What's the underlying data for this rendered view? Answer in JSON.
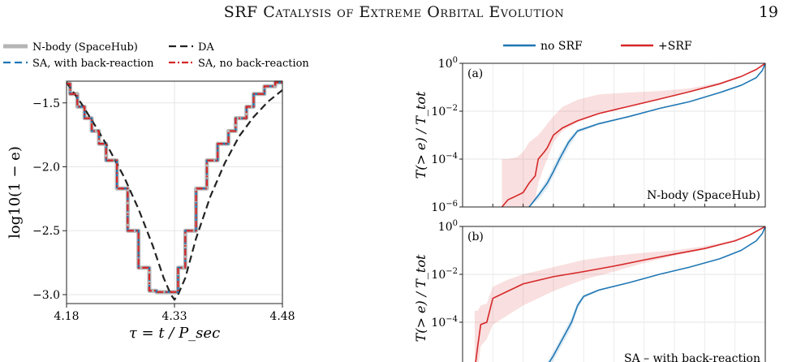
{
  "header": {
    "running_title": "SRF Catalysis of Extreme Orbital Evolution",
    "page_number": "19"
  },
  "chart_data": [
    {
      "type": "line",
      "title": "",
      "xlabel": "τ = t / P_sec",
      "ylabel": "log10(1 − e)",
      "xlim": [
        4.18,
        4.48
      ],
      "ylim": [
        -3.07,
        -1.33
      ],
      "x_ticks": [
        "4.18",
        "4.33",
        "4.48"
      ],
      "y_ticks": [
        "−1.5",
        "−2.0",
        "−2.5",
        "−3.0"
      ],
      "grid": true,
      "legend": {
        "placement": "top",
        "entries": [
          "N-body (SpaceHub)",
          "DA",
          "SA, with back-reaction",
          "SA, no back-reaction"
        ]
      },
      "series": [
        {
          "name": "N-body (SpaceHub)",
          "color": "#b5b5b5",
          "style": "thick-solid",
          "x": [
            4.18,
            4.185,
            4.185,
            4.195,
            4.195,
            4.205,
            4.205,
            4.215,
            4.215,
            4.225,
            4.225,
            4.235,
            4.235,
            4.25,
            4.25,
            4.265,
            4.265,
            4.28,
            4.28,
            4.295,
            4.295,
            4.305,
            4.305,
            4.325,
            4.325,
            4.335,
            4.335,
            4.345,
            4.345,
            4.36,
            4.36,
            4.375,
            4.375,
            4.39,
            4.39,
            4.405,
            4.405,
            4.415,
            4.415,
            4.43,
            4.43,
            4.44,
            4.44,
            4.455,
            4.455,
            4.47,
            4.47,
            4.48
          ],
          "y": [
            -1.35,
            -1.35,
            -1.43,
            -1.43,
            -1.53,
            -1.53,
            -1.62,
            -1.62,
            -1.72,
            -1.72,
            -1.82,
            -1.82,
            -1.95,
            -1.95,
            -2.17,
            -2.17,
            -2.5,
            -2.5,
            -2.79,
            -2.79,
            -2.97,
            -2.97,
            -2.98,
            -2.98,
            -2.98,
            -2.98,
            -2.79,
            -2.79,
            -2.5,
            -2.5,
            -2.17,
            -2.17,
            -1.95,
            -1.95,
            -1.82,
            -1.82,
            -1.72,
            -1.72,
            -1.62,
            -1.62,
            -1.53,
            -1.53,
            -1.43,
            -1.43,
            -1.37,
            -1.37,
            -1.34,
            -1.34
          ]
        },
        {
          "name": "DA",
          "color": "#222222",
          "style": "dashed",
          "x": [
            4.18,
            4.2,
            4.22,
            4.24,
            4.26,
            4.28,
            4.3,
            4.315,
            4.325,
            4.33,
            4.335,
            4.345,
            4.36,
            4.38,
            4.4,
            4.42,
            4.44,
            4.46,
            4.48
          ],
          "y": [
            -1.34,
            -1.5,
            -1.68,
            -1.87,
            -2.08,
            -2.33,
            -2.62,
            -2.87,
            -3.0,
            -3.04,
            -3.0,
            -2.87,
            -2.56,
            -2.23,
            -1.97,
            -1.76,
            -1.61,
            -1.49,
            -1.4
          ]
        },
        {
          "name": "SA, with back-reaction",
          "color": "#1f77b4",
          "style": "dashed",
          "x": [
            4.18,
            4.185,
            4.185,
            4.195,
            4.195,
            4.205,
            4.205,
            4.215,
            4.215,
            4.225,
            4.225,
            4.235,
            4.235,
            4.25,
            4.25,
            4.265,
            4.265,
            4.28,
            4.28,
            4.295,
            4.295,
            4.305,
            4.305,
            4.325,
            4.325,
            4.335,
            4.335,
            4.345,
            4.345,
            4.36,
            4.36,
            4.375,
            4.375,
            4.39,
            4.39,
            4.405,
            4.405,
            4.415,
            4.415,
            4.43,
            4.43,
            4.44,
            4.44,
            4.455,
            4.455,
            4.47,
            4.47,
            4.48
          ],
          "y": [
            -1.35,
            -1.35,
            -1.43,
            -1.43,
            -1.53,
            -1.53,
            -1.62,
            -1.62,
            -1.72,
            -1.72,
            -1.82,
            -1.82,
            -1.95,
            -1.95,
            -2.17,
            -2.17,
            -2.5,
            -2.5,
            -2.79,
            -2.79,
            -2.97,
            -2.97,
            -2.98,
            -2.98,
            -2.98,
            -2.98,
            -2.79,
            -2.79,
            -2.5,
            -2.5,
            -2.17,
            -2.17,
            -1.95,
            -1.95,
            -1.82,
            -1.82,
            -1.72,
            -1.72,
            -1.62,
            -1.62,
            -1.53,
            -1.53,
            -1.43,
            -1.43,
            -1.37,
            -1.37,
            -1.34,
            -1.34
          ]
        },
        {
          "name": "SA, no back-reaction",
          "color": "#d62728",
          "style": "dashdot",
          "x": [
            4.18,
            4.185,
            4.185,
            4.195,
            4.195,
            4.205,
            4.205,
            4.215,
            4.215,
            4.225,
            4.225,
            4.235,
            4.235,
            4.25,
            4.25,
            4.265,
            4.265,
            4.28,
            4.28,
            4.295,
            4.295,
            4.305,
            4.305,
            4.325,
            4.325,
            4.335,
            4.335,
            4.345,
            4.345,
            4.36,
            4.36,
            4.375,
            4.375,
            4.39,
            4.39,
            4.405,
            4.405,
            4.415,
            4.415,
            4.43,
            4.43,
            4.44,
            4.44,
            4.455,
            4.455,
            4.47,
            4.47,
            4.48
          ],
          "y": [
            -1.35,
            -1.35,
            -1.43,
            -1.43,
            -1.53,
            -1.53,
            -1.62,
            -1.62,
            -1.72,
            -1.72,
            -1.82,
            -1.82,
            -1.95,
            -1.95,
            -2.17,
            -2.17,
            -2.5,
            -2.5,
            -2.79,
            -2.79,
            -2.97,
            -2.97,
            -2.98,
            -2.98,
            -2.98,
            -2.98,
            -2.79,
            -2.79,
            -2.5,
            -2.5,
            -2.17,
            -2.17,
            -1.95,
            -1.95,
            -1.82,
            -1.82,
            -1.72,
            -1.72,
            -1.62,
            -1.62,
            -1.53,
            -1.53,
            -1.43,
            -1.43,
            -1.37,
            -1.37,
            -1.34,
            -1.34
          ]
        }
      ]
    },
    {
      "type": "line",
      "panel": "(a)",
      "annotation": "N-body (SpaceHub)",
      "ylabel": "T(> e) / T_tot",
      "yscale": "log",
      "xlim": [
        0,
        1
      ],
      "ylim": [
        1e-06,
        1
      ],
      "y_ticks": [
        "10^0",
        "10^-2",
        "10^-4",
        "10^-6"
      ],
      "grid": true,
      "legend": {
        "placement": "top",
        "entries": [
          "no SRF",
          "+SRF"
        ]
      },
      "series": [
        {
          "name": "no SRF",
          "color": "#1f77b4",
          "x": [
            0.22,
            0.25,
            0.28,
            0.3,
            0.32,
            0.35,
            0.38,
            0.45,
            0.55,
            0.65,
            0.75,
            0.85,
            0.92,
            0.97,
            0.99,
            1.0
          ],
          "y": [
            1e-06,
            3e-06,
            1e-05,
            3e-05,
            0.0001,
            0.0005,
            0.0015,
            0.003,
            0.006,
            0.013,
            0.025,
            0.06,
            0.12,
            0.25,
            0.5,
            1.0
          ],
          "band_low": [
            1e-06,
            2e-06,
            6e-06,
            2e-05,
            6e-05,
            0.0003,
            0.0012,
            0.0027,
            0.0056,
            0.0125,
            0.024,
            0.058,
            0.11,
            0.24,
            0.48,
            1.0
          ],
          "band_high": [
            1e-06,
            4e-06,
            1.5e-05,
            5e-05,
            0.00016,
            0.0007,
            0.0018,
            0.0033,
            0.0064,
            0.0135,
            0.026,
            0.062,
            0.13,
            0.26,
            0.52,
            1.0
          ]
        },
        {
          "name": "+SRF",
          "color": "#d62728",
          "x": [
            0.13,
            0.15,
            0.18,
            0.2,
            0.22,
            0.24,
            0.25,
            0.27,
            0.28,
            0.3,
            0.33,
            0.38,
            0.45,
            0.55,
            0.65,
            0.75,
            0.85,
            0.92,
            0.97,
            1.0
          ],
          "y": [
            1e-06,
            2e-06,
            3e-06,
            4e-06,
            1e-05,
            2e-05,
            0.0001,
            0.0002,
            0.0003,
            0.001,
            0.002,
            0.004,
            0.008,
            0.016,
            0.032,
            0.065,
            0.14,
            0.28,
            0.55,
            1.0
          ],
          "band_low": [
            1e-06,
            1e-06,
            1e-06,
            1e-06,
            1e-06,
            2e-06,
            1e-05,
            5e-05,
            0.0001,
            0.0005,
            0.0015,
            0.0035,
            0.0075,
            0.0155,
            0.031,
            0.063,
            0.13,
            0.27,
            0.54,
            1.0
          ],
          "band_high": [
            0.0001,
            0.0001,
            0.00012,
            0.0002,
            0.0005,
            0.0008,
            0.001,
            0.002,
            0.003,
            0.006,
            0.015,
            0.03,
            0.05,
            0.06,
            0.07,
            0.09,
            0.16,
            0.3,
            0.57,
            1.0
          ]
        }
      ]
    },
    {
      "type": "line",
      "panel": "(b)",
      "annotation": "SA – with back-reaction",
      "ylabel": "T(> e) / T_tot",
      "yscale": "log",
      "xlim": [
        0,
        1
      ],
      "ylim": [
        1e-06,
        1
      ],
      "y_ticks": [
        "10^0",
        "10^-2",
        "10^-4"
      ],
      "grid": true,
      "series": [
        {
          "name": "no SRF",
          "color": "#1f77b4",
          "x": [
            0.27,
            0.3,
            0.33,
            0.36,
            0.38,
            0.4,
            0.45,
            0.55,
            0.65,
            0.75,
            0.85,
            0.92,
            0.97,
            0.99,
            1.0
          ],
          "y": [
            1e-06,
            4e-06,
            2e-05,
            0.0001,
            0.0005,
            0.0012,
            0.0022,
            0.0045,
            0.01,
            0.02,
            0.045,
            0.1,
            0.25,
            0.5,
            1.0
          ],
          "band_low": [
            1e-06,
            2.5e-06,
            1.2e-05,
            6e-05,
            0.00035,
            0.001,
            0.002,
            0.0043,
            0.0097,
            0.0195,
            0.044,
            0.098,
            0.24,
            0.49,
            1.0
          ],
          "band_high": [
            1.4e-06,
            6e-06,
            3e-05,
            0.00016,
            0.0007,
            0.0014,
            0.0024,
            0.0047,
            0.0103,
            0.0205,
            0.046,
            0.102,
            0.26,
            0.51,
            1.0
          ]
        },
        {
          "name": "+SRF",
          "color": "#d62728",
          "x": [
            0.04,
            0.05,
            0.06,
            0.08,
            0.1,
            0.15,
            0.2,
            0.3,
            0.4,
            0.5,
            0.6,
            0.7,
            0.8,
            0.9,
            0.95,
            1.0
          ],
          "y": [
            1e-06,
            1e-05,
            8e-05,
            0.0001,
            0.001,
            0.002,
            0.004,
            0.008,
            0.013,
            0.022,
            0.04,
            0.07,
            0.12,
            0.25,
            0.45,
            1.0
          ],
          "band_low": [
            1e-06,
            1e-06,
            1e-05,
            2e-05,
            8e-05,
            0.0002,
            0.0005,
            0.002,
            0.006,
            0.013,
            0.03,
            0.06,
            0.11,
            0.24,
            0.44,
            1.0
          ],
          "band_high": [
            0.0003,
            0.0003,
            0.0005,
            0.0006,
            0.003,
            0.006,
            0.01,
            0.02,
            0.04,
            0.06,
            0.08,
            0.1,
            0.15,
            0.28,
            0.47,
            1.0
          ]
        }
      ]
    }
  ]
}
